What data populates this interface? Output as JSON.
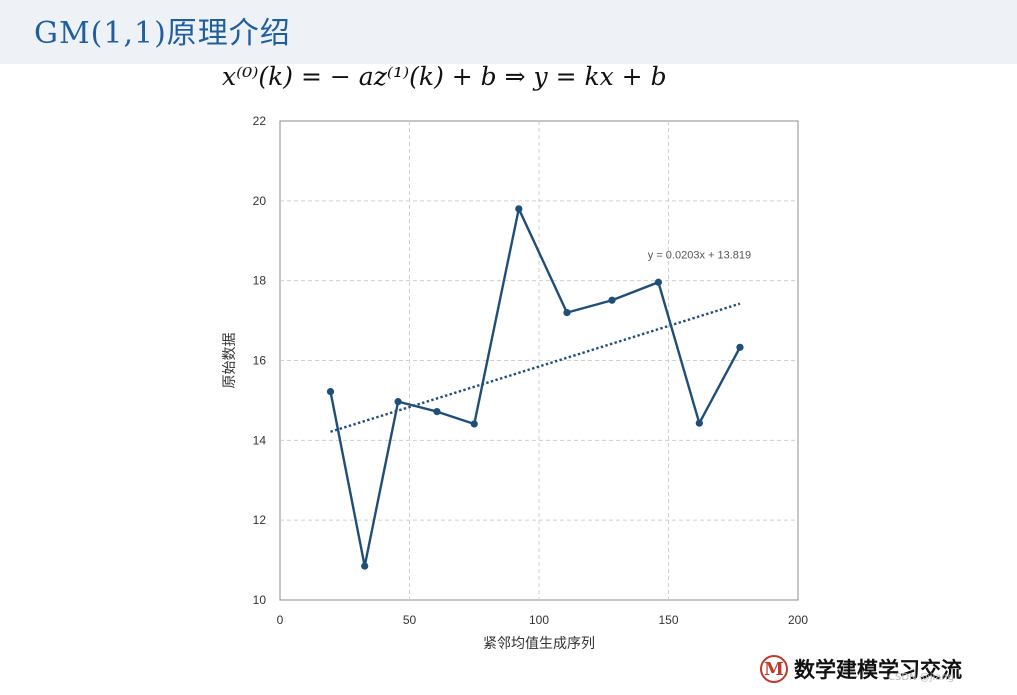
{
  "slide": {
    "title": "GM(1,1)原理介绍",
    "formula": "x⁽⁰⁾(k)  =  − az⁽¹⁾(k) + b   ⇒   y  =  kx  +  b"
  },
  "brand": {
    "badge": "M",
    "text": "数学建模学习交流",
    "watermark": "CSDN @jiang"
  },
  "chart_data": {
    "type": "line",
    "title": "",
    "xlabel": "紧邻均值生成序列",
    "ylabel": "原始数据",
    "xlim": [
      0,
      200
    ],
    "ylim": [
      10,
      22
    ],
    "xticks": [
      0,
      50,
      100,
      150,
      200
    ],
    "yticks": [
      10,
      12,
      14,
      16,
      18,
      20,
      22
    ],
    "grid": true,
    "series": [
      {
        "x": [
          19.5,
          32.7,
          45.6,
          60.6,
          75.0,
          92.2,
          110.8,
          128.2,
          146.1,
          161.9,
          177.6
        ],
        "y": [
          15.22,
          10.85,
          14.97,
          14.72,
          14.41,
          19.8,
          17.2,
          17.51,
          17.96,
          14.43,
          16.33
        ],
        "color": "#1f4e79"
      }
    ],
    "trendline": {
      "equation": "y = 0.0203x + 13.819",
      "slope": 0.0203,
      "intercept": 13.819,
      "x_range": [
        19.5,
        177.6
      ],
      "color": "#1f4e79",
      "style": "dotted"
    }
  }
}
